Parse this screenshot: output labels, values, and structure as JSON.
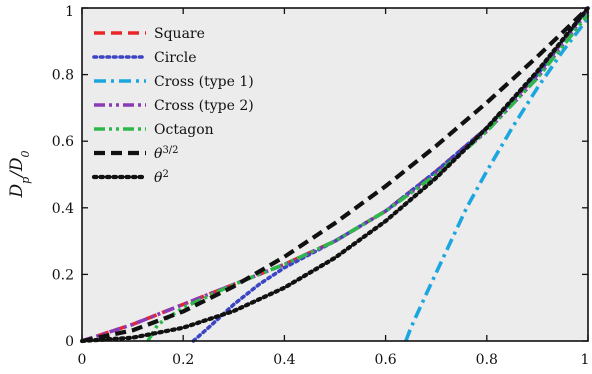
{
  "chart_data": {
    "type": "line",
    "title": "",
    "xlabel": "",
    "ylabel": "D_p/D_0",
    "xlim": [
      0,
      1
    ],
    "ylim": [
      0,
      1
    ],
    "x_ticks": [
      "0",
      "0.2",
      "0.4",
      "0.6",
      "0.8",
      "1"
    ],
    "y_ticks": [
      "0",
      "0.2",
      "0.4",
      "0.6",
      "0.8",
      "1"
    ],
    "grid": false,
    "legend_position": "top-left",
    "series": [
      {
        "name": "Square",
        "color": "#e8262a",
        "dash": "dashed",
        "x": [
          0,
          0.1,
          0.2,
          0.3,
          0.4,
          0.5,
          0.6,
          0.7,
          0.8,
          0.9,
          1.0
        ],
        "y": [
          0,
          0.05,
          0.11,
          0.17,
          0.23,
          0.3,
          0.39,
          0.51,
          0.64,
          0.8,
          1.0
        ]
      },
      {
        "name": "Circle",
        "color": "#3b45c4",
        "dash": "dotted",
        "x": [
          0.22,
          0.25,
          0.3,
          0.35,
          0.4,
          0.5,
          0.6,
          0.7,
          0.8,
          0.9,
          1.0
        ],
        "y": [
          0,
          0.04,
          0.11,
          0.17,
          0.22,
          0.3,
          0.39,
          0.51,
          0.64,
          0.8,
          1.0
        ]
      },
      {
        "name": "Cross (type 1)",
        "color": "#1ba6e0",
        "dash": "dashdot",
        "x": [
          0.64,
          0.65,
          0.68,
          0.72,
          0.76,
          0.8,
          0.85,
          0.9,
          0.95,
          1.0
        ],
        "y": [
          0,
          0.04,
          0.14,
          0.27,
          0.4,
          0.51,
          0.64,
          0.76,
          0.87,
          0.97
        ]
      },
      {
        "name": "Cross (type 2)",
        "color": "#8a3bb8",
        "dash": "dashdotdot",
        "x": [
          0,
          0.1,
          0.2,
          0.3,
          0.4,
          0.5,
          0.6,
          0.7,
          0.8,
          0.9,
          1.0
        ],
        "y": [
          0,
          0.05,
          0.11,
          0.17,
          0.23,
          0.3,
          0.39,
          0.5,
          0.63,
          0.79,
          0.99
        ]
      },
      {
        "name": "Octagon",
        "color": "#2fb84a",
        "dash": "dashdotdot",
        "x": [
          0.13,
          0.15,
          0.2,
          0.3,
          0.4,
          0.5,
          0.6,
          0.7,
          0.8,
          0.9,
          1.0
        ],
        "y": [
          0,
          0.05,
          0.1,
          0.17,
          0.23,
          0.3,
          0.39,
          0.5,
          0.63,
          0.79,
          0.98
        ]
      },
      {
        "name": "θ^{3/2}",
        "color": "#111111",
        "dash": "dashed",
        "x": [
          0,
          0.1,
          0.2,
          0.3,
          0.4,
          0.5,
          0.6,
          0.7,
          0.8,
          0.9,
          1.0
        ],
        "y": [
          0,
          0.032,
          0.089,
          0.164,
          0.253,
          0.354,
          0.465,
          0.586,
          0.716,
          0.854,
          1.0
        ]
      },
      {
        "name": "θ^2",
        "color": "#111111",
        "dash": "dotted",
        "x": [
          0,
          0.1,
          0.2,
          0.3,
          0.4,
          0.5,
          0.6,
          0.7,
          0.8,
          0.9,
          1.0
        ],
        "y": [
          0,
          0.01,
          0.04,
          0.09,
          0.16,
          0.25,
          0.36,
          0.49,
          0.64,
          0.81,
          1.0
        ]
      }
    ]
  },
  "colors": {
    "plot_background": "#ececec",
    "axis": "#111111"
  }
}
